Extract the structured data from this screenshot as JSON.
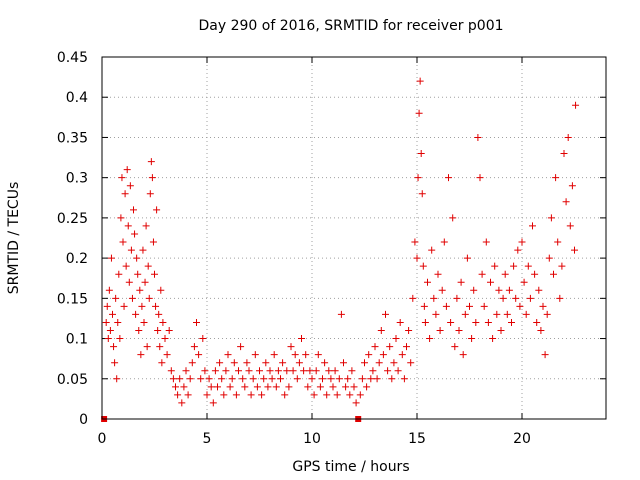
{
  "chart_data": {
    "type": "scatter",
    "title": "Day 290 of 2016, SRMTID for receiver p001",
    "xlabel": "GPS time / hours",
    "ylabel": "SRMTID / TECUs",
    "xlim": [
      0,
      24
    ],
    "ylim": [
      0,
      0.45
    ],
    "xticks": [
      0,
      5,
      10,
      15,
      20
    ],
    "yticks": [
      0,
      0.05,
      0.1,
      0.15,
      0.2,
      0.25,
      0.3,
      0.35,
      0.4,
      0.45
    ],
    "xtick_labels": [
      "0",
      "5",
      "10",
      "15",
      "20"
    ],
    "ytick_labels": [
      "0",
      "0.05",
      "0.1",
      "0.15",
      "0.2",
      "0.25",
      "0.3",
      "0.35",
      "0.4",
      "0.45"
    ],
    "grid": true,
    "marker": "plus",
    "color": "#e00000",
    "square_markers": [
      {
        "x": 0.1,
        "y": 0.0
      },
      {
        "x": 12.2,
        "y": 0.0
      }
    ],
    "series": [
      {
        "name": "SRMTID",
        "points": [
          [
            0.2,
            0.12
          ],
          [
            0.25,
            0.14
          ],
          [
            0.3,
            0.1
          ],
          [
            0.35,
            0.16
          ],
          [
            0.4,
            0.11
          ],
          [
            0.45,
            0.2
          ],
          [
            0.5,
            0.13
          ],
          [
            0.55,
            0.09
          ],
          [
            0.6,
            0.07
          ],
          [
            0.65,
            0.15
          ],
          [
            0.7,
            0.05
          ],
          [
            0.75,
            0.12
          ],
          [
            0.8,
            0.18
          ],
          [
            0.85,
            0.1
          ],
          [
            0.9,
            0.25
          ],
          [
            0.95,
            0.3
          ],
          [
            1.0,
            0.22
          ],
          [
            1.05,
            0.14
          ],
          [
            1.1,
            0.28
          ],
          [
            1.15,
            0.19
          ],
          [
            1.2,
            0.31
          ],
          [
            1.25,
            0.24
          ],
          [
            1.3,
            0.17
          ],
          [
            1.35,
            0.29
          ],
          [
            1.4,
            0.21
          ],
          [
            1.45,
            0.15
          ],
          [
            1.5,
            0.26
          ],
          [
            1.55,
            0.23
          ],
          [
            1.6,
            0.13
          ],
          [
            1.65,
            0.2
          ],
          [
            1.7,
            0.18
          ],
          [
            1.75,
            0.11
          ],
          [
            1.8,
            0.16
          ],
          [
            1.85,
            0.08
          ],
          [
            1.9,
            0.14
          ],
          [
            1.95,
            0.21
          ],
          [
            2.0,
            0.12
          ],
          [
            2.05,
            0.17
          ],
          [
            2.1,
            0.24
          ],
          [
            2.15,
            0.09
          ],
          [
            2.2,
            0.19
          ],
          [
            2.25,
            0.15
          ],
          [
            2.3,
            0.28
          ],
          [
            2.35,
            0.32
          ],
          [
            2.4,
            0.3
          ],
          [
            2.45,
            0.22
          ],
          [
            2.5,
            0.18
          ],
          [
            2.55,
            0.14
          ],
          [
            2.6,
            0.26
          ],
          [
            2.65,
            0.11
          ],
          [
            2.7,
            0.13
          ],
          [
            2.75,
            0.09
          ],
          [
            2.8,
            0.16
          ],
          [
            2.85,
            0.07
          ],
          [
            2.9,
            0.12
          ],
          [
            3.0,
            0.1
          ],
          [
            3.1,
            0.08
          ],
          [
            3.2,
            0.11
          ],
          [
            3.3,
            0.06
          ],
          [
            3.4,
            0.05
          ],
          [
            3.5,
            0.04
          ],
          [
            3.6,
            0.03
          ],
          [
            3.7,
            0.05
          ],
          [
            3.8,
            0.02
          ],
          [
            3.9,
            0.04
          ],
          [
            4.0,
            0.06
          ],
          [
            4.1,
            0.03
          ],
          [
            4.2,
            0.05
          ],
          [
            4.3,
            0.07
          ],
          [
            4.4,
            0.09
          ],
          [
            4.5,
            0.12
          ],
          [
            4.6,
            0.08
          ],
          [
            4.7,
            0.05
          ],
          [
            4.8,
            0.1
          ],
          [
            4.9,
            0.06
          ],
          [
            5.0,
            0.03
          ],
          [
            5.1,
            0.05
          ],
          [
            5.2,
            0.04
          ],
          [
            5.3,
            0.02
          ],
          [
            5.4,
            0.06
          ],
          [
            5.5,
            0.04
          ],
          [
            5.6,
            0.07
          ],
          [
            5.7,
            0.05
          ],
          [
            5.8,
            0.03
          ],
          [
            5.9,
            0.06
          ],
          [
            6.0,
            0.08
          ],
          [
            6.1,
            0.04
          ],
          [
            6.2,
            0.05
          ],
          [
            6.3,
            0.07
          ],
          [
            6.4,
            0.03
          ],
          [
            6.5,
            0.06
          ],
          [
            6.6,
            0.09
          ],
          [
            6.7,
            0.05
          ],
          [
            6.8,
            0.04
          ],
          [
            6.9,
            0.07
          ],
          [
            7.0,
            0.06
          ],
          [
            7.1,
            0.03
          ],
          [
            7.2,
            0.05
          ],
          [
            7.3,
            0.08
          ],
          [
            7.4,
            0.04
          ],
          [
            7.5,
            0.06
          ],
          [
            7.6,
            0.03
          ],
          [
            7.7,
            0.05
          ],
          [
            7.8,
            0.07
          ],
          [
            7.9,
            0.04
          ],
          [
            8.0,
            0.06
          ],
          [
            8.1,
            0.05
          ],
          [
            8.2,
            0.08
          ],
          [
            8.3,
            0.04
          ],
          [
            8.4,
            0.06
          ],
          [
            8.5,
            0.05
          ],
          [
            8.6,
            0.07
          ],
          [
            8.7,
            0.03
          ],
          [
            8.8,
            0.06
          ],
          [
            8.9,
            0.04
          ],
          [
            9.0,
            0.09
          ],
          [
            9.1,
            0.06
          ],
          [
            9.2,
            0.08
          ],
          [
            9.3,
            0.05
          ],
          [
            9.4,
            0.07
          ],
          [
            9.5,
            0.1
          ],
          [
            9.6,
            0.06
          ],
          [
            9.7,
            0.08
          ],
          [
            9.8,
            0.04
          ],
          [
            9.9,
            0.06
          ],
          [
            10.0,
            0.05
          ],
          [
            10.1,
            0.03
          ],
          [
            10.2,
            0.06
          ],
          [
            10.3,
            0.08
          ],
          [
            10.4,
            0.04
          ],
          [
            10.5,
            0.05
          ],
          [
            10.6,
            0.07
          ],
          [
            10.7,
            0.03
          ],
          [
            10.8,
            0.06
          ],
          [
            10.9,
            0.05
          ],
          [
            11.0,
            0.04
          ],
          [
            11.1,
            0.06
          ],
          [
            11.2,
            0.03
          ],
          [
            11.3,
            0.05
          ],
          [
            11.4,
            0.13
          ],
          [
            11.5,
            0.07
          ],
          [
            11.6,
            0.04
          ],
          [
            11.7,
            0.05
          ],
          [
            11.8,
            0.03
          ],
          [
            11.9,
            0.06
          ],
          [
            12.0,
            0.04
          ],
          [
            12.1,
            0.02
          ],
          [
            12.3,
            0.03
          ],
          [
            12.4,
            0.05
          ],
          [
            12.5,
            0.07
          ],
          [
            12.6,
            0.04
          ],
          [
            12.7,
            0.08
          ],
          [
            12.8,
            0.05
          ],
          [
            12.9,
            0.06
          ],
          [
            13.0,
            0.09
          ],
          [
            13.1,
            0.05
          ],
          [
            13.2,
            0.07
          ],
          [
            13.3,
            0.11
          ],
          [
            13.4,
            0.08
          ],
          [
            13.5,
            0.13
          ],
          [
            13.6,
            0.06
          ],
          [
            13.7,
            0.09
          ],
          [
            13.8,
            0.05
          ],
          [
            13.9,
            0.07
          ],
          [
            14.0,
            0.1
          ],
          [
            14.1,
            0.06
          ],
          [
            14.2,
            0.12
          ],
          [
            14.3,
            0.08
          ],
          [
            14.4,
            0.05
          ],
          [
            14.5,
            0.09
          ],
          [
            14.6,
            0.11
          ],
          [
            14.7,
            0.07
          ],
          [
            14.8,
            0.15
          ],
          [
            14.9,
            0.22
          ],
          [
            15.0,
            0.2
          ],
          [
            15.05,
            0.3
          ],
          [
            15.1,
            0.38
          ],
          [
            15.15,
            0.42
          ],
          [
            15.2,
            0.33
          ],
          [
            15.25,
            0.28
          ],
          [
            15.3,
            0.19
          ],
          [
            15.35,
            0.14
          ],
          [
            15.4,
            0.12
          ],
          [
            15.5,
            0.17
          ],
          [
            15.6,
            0.1
          ],
          [
            15.7,
            0.21
          ],
          [
            15.8,
            0.15
          ],
          [
            15.9,
            0.13
          ],
          [
            16.0,
            0.18
          ],
          [
            16.1,
            0.11
          ],
          [
            16.2,
            0.16
          ],
          [
            16.3,
            0.22
          ],
          [
            16.4,
            0.14
          ],
          [
            16.5,
            0.3
          ],
          [
            16.6,
            0.12
          ],
          [
            16.7,
            0.25
          ],
          [
            16.8,
            0.09
          ],
          [
            16.9,
            0.15
          ],
          [
            17.0,
            0.11
          ],
          [
            17.1,
            0.17
          ],
          [
            17.2,
            0.08
          ],
          [
            17.3,
            0.13
          ],
          [
            17.4,
            0.2
          ],
          [
            17.5,
            0.14
          ],
          [
            17.6,
            0.1
          ],
          [
            17.7,
            0.16
          ],
          [
            17.8,
            0.12
          ],
          [
            17.9,
            0.35
          ],
          [
            18.0,
            0.3
          ],
          [
            18.1,
            0.18
          ],
          [
            18.2,
            0.14
          ],
          [
            18.3,
            0.22
          ],
          [
            18.4,
            0.12
          ],
          [
            18.5,
            0.17
          ],
          [
            18.6,
            0.1
          ],
          [
            18.7,
            0.19
          ],
          [
            18.8,
            0.13
          ],
          [
            18.9,
            0.16
          ],
          [
            19.0,
            0.11
          ],
          [
            19.1,
            0.15
          ],
          [
            19.2,
            0.18
          ],
          [
            19.3,
            0.13
          ],
          [
            19.4,
            0.16
          ],
          [
            19.5,
            0.12
          ],
          [
            19.6,
            0.19
          ],
          [
            19.7,
            0.15
          ],
          [
            19.8,
            0.21
          ],
          [
            19.9,
            0.14
          ],
          [
            20.0,
            0.22
          ],
          [
            20.1,
            0.17
          ],
          [
            20.2,
            0.13
          ],
          [
            20.3,
            0.19
          ],
          [
            20.4,
            0.15
          ],
          [
            20.5,
            0.24
          ],
          [
            20.6,
            0.18
          ],
          [
            20.7,
            0.12
          ],
          [
            20.8,
            0.16
          ],
          [
            20.9,
            0.11
          ],
          [
            21.0,
            0.14
          ],
          [
            21.1,
            0.08
          ],
          [
            21.2,
            0.13
          ],
          [
            21.3,
            0.2
          ],
          [
            21.4,
            0.25
          ],
          [
            21.5,
            0.18
          ],
          [
            21.6,
            0.3
          ],
          [
            21.7,
            0.22
          ],
          [
            21.8,
            0.15
          ],
          [
            21.9,
            0.19
          ],
          [
            22.0,
            0.33
          ],
          [
            22.1,
            0.27
          ],
          [
            22.2,
            0.35
          ],
          [
            22.3,
            0.24
          ],
          [
            22.4,
            0.29
          ],
          [
            22.5,
            0.21
          ],
          [
            22.55,
            0.39
          ]
        ]
      }
    ]
  }
}
